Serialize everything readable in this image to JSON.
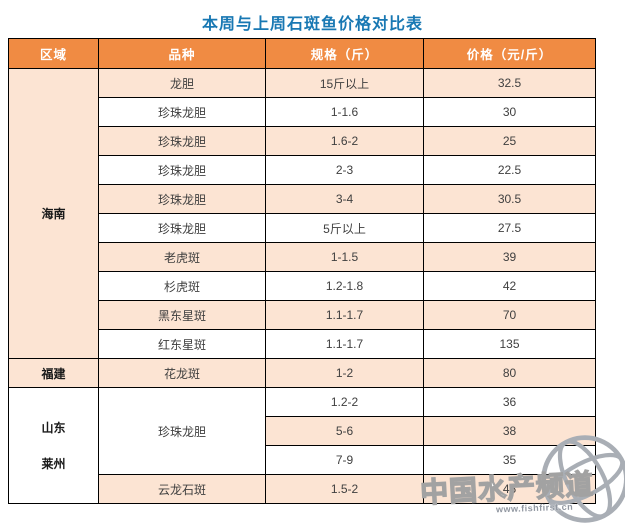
{
  "page": {
    "title": "本周与上周石斑鱼价格对比表"
  },
  "colors": {
    "title_text": "#1878b3",
    "header_bg": "#f08b43",
    "header_text": "#ffffff",
    "row_shade_bg": "#fce4d3",
    "row_white_bg": "#ffffff",
    "grid_border": "#000000",
    "cell_text": "#3f3f3f",
    "watermark_text": "#ffffff",
    "watermark_outline": "#a2a2a2"
  },
  "table": {
    "columns": [
      "区域",
      "品种",
      "规格（斤）",
      "价格（元/斤）"
    ],
    "rows": [
      {
        "cells": [
          {
            "type": "region",
            "text": "海南",
            "rowspan": 10,
            "bold": true,
            "bg": "peach"
          },
          {
            "type": "variety",
            "text": "龙胆",
            "bg": "peach"
          },
          {
            "type": "spec",
            "text": "15斤以上",
            "bg": "peach"
          },
          {
            "type": "price",
            "text": "32.5",
            "bg": "peach"
          }
        ]
      },
      {
        "cells": [
          {
            "type": "variety",
            "text": "珍珠龙胆"
          },
          {
            "type": "spec",
            "text": "1-1.6"
          },
          {
            "type": "price",
            "text": "30"
          }
        ]
      },
      {
        "cells": [
          {
            "type": "variety",
            "text": "珍珠龙胆",
            "bg": "peach"
          },
          {
            "type": "spec",
            "text": "1.6-2",
            "bg": "peach"
          },
          {
            "type": "price",
            "text": "25",
            "bg": "peach"
          }
        ]
      },
      {
        "cells": [
          {
            "type": "variety",
            "text": "珍珠龙胆"
          },
          {
            "type": "spec",
            "text": "2-3"
          },
          {
            "type": "price",
            "text": "22.5"
          }
        ]
      },
      {
        "cells": [
          {
            "type": "variety",
            "text": "珍珠龙胆",
            "bg": "peach"
          },
          {
            "type": "spec",
            "text": "3-4",
            "bg": "peach"
          },
          {
            "type": "price",
            "text": "30.5",
            "bg": "peach"
          }
        ]
      },
      {
        "cells": [
          {
            "type": "variety",
            "text": "珍珠龙胆"
          },
          {
            "type": "spec",
            "text": "5斤以上"
          },
          {
            "type": "price",
            "text": "27.5"
          }
        ]
      },
      {
        "cells": [
          {
            "type": "variety",
            "text": "老虎斑",
            "bg": "peach"
          },
          {
            "type": "spec",
            "text": "1-1.5",
            "bg": "peach"
          },
          {
            "type": "price",
            "text": "39",
            "bg": "peach"
          }
        ]
      },
      {
        "cells": [
          {
            "type": "variety",
            "text": "杉虎斑"
          },
          {
            "type": "spec",
            "text": "1.2-1.8"
          },
          {
            "type": "price",
            "text": "42"
          }
        ]
      },
      {
        "cells": [
          {
            "type": "variety",
            "text": "黑东星斑",
            "bg": "peach"
          },
          {
            "type": "spec",
            "text": "1.1-1.7",
            "bg": "peach"
          },
          {
            "type": "price",
            "text": "70",
            "bg": "peach"
          }
        ]
      },
      {
        "cells": [
          {
            "type": "variety",
            "text": "红东星斑"
          },
          {
            "type": "spec",
            "text": "1.1-1.7"
          },
          {
            "type": "price",
            "text": "135"
          }
        ]
      },
      {
        "cells": [
          {
            "type": "region",
            "text": "福建",
            "bold": true,
            "bg": "peach"
          },
          {
            "type": "variety",
            "text": "花龙斑",
            "bg": "peach"
          },
          {
            "type": "spec",
            "text": "1-2",
            "bg": "peach"
          },
          {
            "type": "price",
            "text": "80",
            "bg": "peach"
          }
        ]
      },
      {
        "cells": [
          {
            "type": "region",
            "text": "山东\n莱州",
            "rowspan": 4,
            "bold": true,
            "tall": true
          },
          {
            "type": "variety",
            "text": "珍珠龙胆",
            "rowspan": 3
          },
          {
            "type": "spec",
            "text": "1.2-2"
          },
          {
            "type": "price",
            "text": "36"
          }
        ]
      },
      {
        "cells": [
          {
            "type": "spec",
            "text": "5-6",
            "bg": "peach"
          },
          {
            "type": "price",
            "text": "38",
            "bg": "peach"
          }
        ]
      },
      {
        "cells": [
          {
            "type": "spec",
            "text": "7-9"
          },
          {
            "type": "price",
            "text": "35"
          }
        ]
      },
      {
        "cells": [
          {
            "type": "variety",
            "text": "云龙石斑",
            "bg": "peach"
          },
          {
            "type": "spec",
            "text": "1.5-2",
            "bg": "peach"
          },
          {
            "type": "price",
            "text": "45",
            "bg": "peach"
          }
        ]
      }
    ]
  },
  "watermark": {
    "brand": "中国水产频道",
    "url": "www.fishfirst.cn",
    "icon": "globe-icon"
  },
  "chart_data": {
    "type": "table",
    "title": "本周与上周石斑鱼价格对比表",
    "columns": [
      "区域",
      "品种",
      "规格（斤）",
      "价格（元/斤）"
    ],
    "rows": [
      [
        "海南",
        "龙胆",
        "15斤以上",
        32.5
      ],
      [
        "海南",
        "珍珠龙胆",
        "1-1.6",
        30
      ],
      [
        "海南",
        "珍珠龙胆",
        "1.6-2",
        25
      ],
      [
        "海南",
        "珍珠龙胆",
        "2-3",
        22.5
      ],
      [
        "海南",
        "珍珠龙胆",
        "3-4",
        30.5
      ],
      [
        "海南",
        "珍珠龙胆",
        "5斤以上",
        27.5
      ],
      [
        "海南",
        "老虎斑",
        "1-1.5",
        39
      ],
      [
        "海南",
        "杉虎斑",
        "1.2-1.8",
        42
      ],
      [
        "海南",
        "黑东星斑",
        "1.1-1.7",
        70
      ],
      [
        "海南",
        "红东星斑",
        "1.1-1.7",
        135
      ],
      [
        "福建",
        "花龙斑",
        "1-2",
        80
      ],
      [
        "山东莱州",
        "珍珠龙胆",
        "1.2-2",
        36
      ],
      [
        "山东莱州",
        "珍珠龙胆",
        "5-6",
        38
      ],
      [
        "山东莱州",
        "珍珠龙胆",
        "7-9",
        35
      ],
      [
        "山东莱州",
        "云龙石斑",
        "1.5-2",
        45
      ]
    ],
    "layout": {
      "grid": true,
      "shaded_row_fill": "#fce4d3",
      "header_fill": "#f08b43"
    }
  }
}
